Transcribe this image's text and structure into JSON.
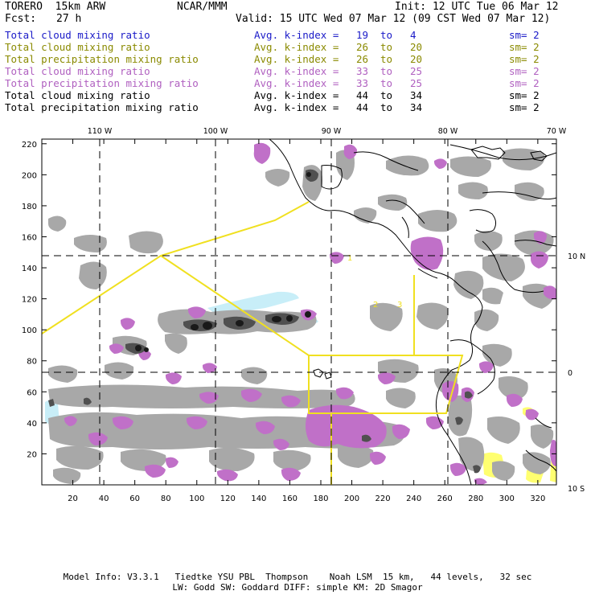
{
  "header": {
    "model": "TORERO  15km ARW",
    "center": "NCAR/MMM",
    "init": "Init: 12 UTC Tue 06 Mar 12",
    "fcst_label": "Fcst:",
    "fcst_value": "27 h",
    "valid": "Valid: 15 UTC Wed 07 Mar 12 (09 CST Wed 07 Mar 12)"
  },
  "legend": [
    {
      "field": "Total cloud mixing ratio",
      "avg": "Avg. k-index =",
      "k1": "19",
      "to": "to",
      "k2": "4",
      "sm": "sm= 2",
      "color": "#1a1ac8"
    },
    {
      "field": "Total cloud mixing ratio",
      "avg": "Avg. k-index =",
      "k1": "26",
      "to": "to",
      "k2": "20",
      "sm": "sm= 2",
      "color": "#8a8a00"
    },
    {
      "field": "Total precipitation mixing ratio",
      "avg": "Avg. k-index =",
      "k1": "26",
      "to": "to",
      "k2": "20",
      "sm": "sm= 2",
      "color": "#8a8a00"
    },
    {
      "field": "Total cloud mixing ratio",
      "avg": "Avg. k-index =",
      "k1": "33",
      "to": "to",
      "k2": "25",
      "sm": "sm= 2",
      "color": "#b060c0"
    },
    {
      "field": "Total precipitation mixing ratio",
      "avg": "Avg. k-index =",
      "k1": "33",
      "to": "to",
      "k2": "25",
      "sm": "sm= 2",
      "color": "#b060c0"
    },
    {
      "field": "Total cloud mixing ratio",
      "avg": "Avg. k-index =",
      "k1": "44",
      "to": "to",
      "k2": "34",
      "sm": "sm= 2",
      "color": "#000000"
    },
    {
      "field": "Total precipitation mixing ratio",
      "avg": "Avg. k-index =",
      "k1": "44",
      "to": "to",
      "k2": "34",
      "sm": "sm= 2",
      "color": "#000000"
    }
  ],
  "map": {
    "top_labels": [
      "110 W",
      "100 W",
      "90 W",
      "80 W",
      "70 W"
    ],
    "right_labels": [
      "10 N",
      "0",
      "10 S"
    ],
    "x_ticks": [
      "20",
      "40",
      "60",
      "80",
      "100",
      "120",
      "140",
      "160",
      "180",
      "200",
      "220",
      "240",
      "260",
      "280",
      "300",
      "320"
    ],
    "y_ticks": [
      "20",
      "40",
      "60",
      "80",
      "100",
      "120",
      "140",
      "160",
      "180",
      "200",
      "220"
    ],
    "colors": {
      "cloud_gray": "#a8a8a8",
      "cloud_dark": "#505050",
      "cloud_core": "#1a1a1a",
      "precip_purple": "#c070c8",
      "light_cyan": "#c8eef8",
      "light_yellow": "#ffff70",
      "domain_yellow": "#f0e020",
      "coast_black": "#000000"
    }
  },
  "footer": {
    "line1": "Model Info: V3.3.1   Tiedtke YSU PBL  Thompson    Noah LSM  15 km,   44 levels,   32 sec",
    "line2": "LW: Godd SW: Goddard DIFF: simple KM: 2D Smagor"
  }
}
